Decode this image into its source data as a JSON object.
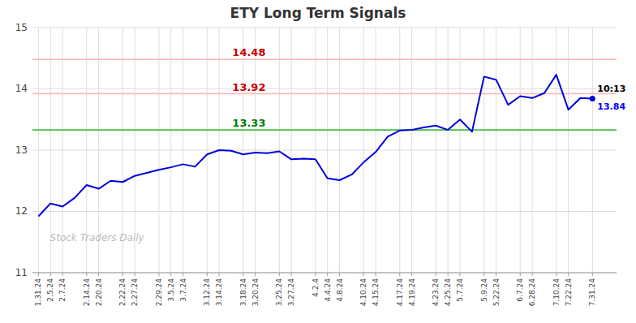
{
  "chart_data": {
    "type": "line",
    "title": "ETY Long Term Signals",
    "categories": [
      "1.31.24",
      "2.5.24",
      "2.7.24",
      null,
      "2.14.24",
      "2.20.24",
      null,
      "2.22.24",
      "2.27.24",
      null,
      "2.29.24",
      "3.5.24",
      "3.7.24",
      null,
      "3.12.24",
      "3.14.24",
      null,
      "3.18.24",
      "3.20.24",
      null,
      "3.25.24",
      "3.27.24",
      null,
      "4.2.4",
      "4.4.24",
      "4.8.24",
      null,
      "4.10.24",
      "4.15.24",
      null,
      "4.17.24",
      "4.19.24",
      null,
      "4.23.24",
      "4.25.24",
      "5.7.24",
      null,
      "5.9.24",
      "5.22.24",
      null,
      "6.7.24",
      "6.28.24",
      null,
      "7.10.24",
      "7.22.24",
      null,
      "7.31.24"
    ],
    "values": [
      11.92,
      12.13,
      12.08,
      12.22,
      12.43,
      12.37,
      12.5,
      12.48,
      12.58,
      12.63,
      12.68,
      12.72,
      12.77,
      12.73,
      12.93,
      13.0,
      12.99,
      12.93,
      12.96,
      12.95,
      12.98,
      12.85,
      12.86,
      12.85,
      12.54,
      12.51,
      12.6,
      12.8,
      12.97,
      13.22,
      13.32,
      13.33,
      13.37,
      13.4,
      13.33,
      13.5,
      13.3,
      14.2,
      14.15,
      13.74,
      13.88,
      13.85,
      13.93,
      14.23,
      13.66,
      13.85,
      13.84
    ],
    "color": "#0000dd",
    "ylim": [
      11,
      15
    ],
    "yticks": [
      11,
      12,
      13,
      14,
      15
    ],
    "grid": true,
    "reference_lines": [
      {
        "value": 14.48,
        "label": "14.48",
        "color": "#ffb3b3",
        "label_color": "#cc0000"
      },
      {
        "value": 13.92,
        "label": "13.92",
        "color": "#ffb3b3",
        "label_color": "#cc0000"
      },
      {
        "value": 13.33,
        "label": "13.33",
        "color": "#44bb44",
        "label_color": "#007700"
      }
    ],
    "annotations": [
      {
        "text": "10:13",
        "color": "#000000"
      },
      {
        "text": "13.84",
        "color": "#0000ff"
      }
    ],
    "watermark": "Stock Traders Daily"
  }
}
